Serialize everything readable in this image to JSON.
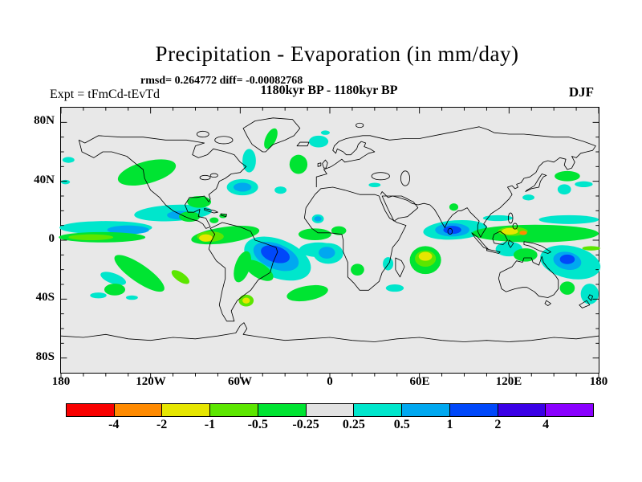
{
  "title": "Precipitation - Evaporation (in mm/day)",
  "stats_line": "rmsd= 0.264772 diff= -0.00082768",
  "period_line": "1180kyr BP - 1180kyr BP",
  "experiment_label": "Expt = tFmCd-tEvTd",
  "season_label": "DJF",
  "axes": {
    "x_ticks": [
      "180",
      "120W",
      "60W",
      "0",
      "60E",
      "120E",
      "180"
    ],
    "y_ticks": [
      "80N",
      "40N",
      "0",
      "40S",
      "80S"
    ]
  },
  "colorbar": {
    "levels": [
      "-4",
      "-2",
      "-1",
      "-0.5",
      "-0.25",
      "0.25",
      "0.5",
      "1",
      "2",
      "4"
    ],
    "colors": [
      "#f80000",
      "#ff8a00",
      "#e6e600",
      "#5ce600",
      "#00e432",
      "#e2e2e2",
      "#00e6cc",
      "#00a8f0",
      "#0048fa",
      "#3a00e6",
      "#8a00ff"
    ]
  },
  "map_background_color": "#e8e8e8",
  "chart_data": {
    "type": "heatmap",
    "subtype": "filled-contour world map",
    "title": "Precipitation - Evaporation (in mm/day)",
    "stats": "rmsd= 0.264772 diff= -0.00082768",
    "period": "1180kyr BP - 1180kyr BP",
    "experiment": "Expt = tFmCd-tEvTd",
    "season": "DJF",
    "units": "mm/day",
    "projection": "equirectangular, longitude 180W-180E, latitude 90S-90N",
    "xlim_deg": [
      -180,
      180
    ],
    "ylim_deg": [
      -90,
      90
    ],
    "x_tick_labels": [
      "180",
      "120W",
      "60W",
      "0",
      "60E",
      "120E",
      "180"
    ],
    "y_tick_labels": [
      "80N",
      "40N",
      "0",
      "40S",
      "80S"
    ],
    "contour_levels": [
      -4,
      -2,
      -1,
      -0.5,
      -0.25,
      0.25,
      0.5,
      1,
      2,
      4
    ],
    "palette_low_to_high": [
      "#f80000",
      "#ff8a00",
      "#e6e600",
      "#5ce600",
      "#00e432",
      "#e2e2e2",
      "#00e6cc",
      "#00a8f0",
      "#0048fa",
      "#3a00e6",
      "#8a00ff"
    ],
    "legend_position": "horizontal colorbar below map",
    "grid": false,
    "anomaly_regions": [
      {
        "region": "North Pacific coast of North America",
        "level_mm_day": "-0.5 to -0.25"
      },
      {
        "region": "Ocean south of Greenland",
        "level_mm_day": "+0.25 to +0.5"
      },
      {
        "region": "Southeast Greenland coast and near Iceland",
        "level_mm_day": "-0.5 to -0.25"
      },
      {
        "region": "North Atlantic off eastern United States",
        "level_mm_day": "+0.5 to +1"
      },
      {
        "region": "Tropical eastern Pacific",
        "level_mm_day": "+0.25 to +1 bands beside equatorial green band -0.5 to -0.25"
      },
      {
        "region": "Central America and Caribbean",
        "level_mm_day": "-0.5 to -0.25"
      },
      {
        "region": "Northwestern South America (Peru/Ecuador)",
        "level_mm_day": "-2 to -1"
      },
      {
        "region": "Eastern Brazil and adjacent South Atlantic",
        "level_mm_day": "+1 to +2"
      },
      {
        "region": "South Atlantic off Angola/Namibia",
        "level_mm_day": "+0.5 to +1"
      },
      {
        "region": "Central subtropical Indian Ocean",
        "level_mm_day": "-2 to -1"
      },
      {
        "region": "South India / Bay of Bengal",
        "level_mm_day": "+1 to +2"
      },
      {
        "region": "Maritime Continent (Borneo to New Guinea)",
        "level_mm_day": "-1 to -0.5 with local -4 to -2 spot"
      },
      {
        "region": "Coral Sea east of Australia",
        "level_mm_day": "+1 to +2"
      },
      {
        "region": "Southern mid-latitude Pacific",
        "level_mm_day": "-0.5 to -0.25"
      },
      {
        "region": "Central Argentina",
        "level_mm_day": "-2 to -1"
      },
      {
        "region": "Seas around New Zealand and south of Australia",
        "level_mm_day": "+0.25 to +0.5"
      },
      {
        "region": "Northwest Pacific near Japan",
        "level_mm_day": "mixed -0.5 to -0.25 and +0.25 to +0.5"
      }
    ]
  }
}
